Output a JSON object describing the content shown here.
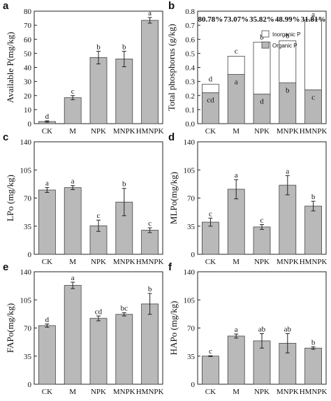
{
  "chart_data": [
    {
      "panel": "a",
      "type": "bar",
      "categories": [
        "CK",
        "M",
        "NPK",
        "MNPK",
        "HMNPK"
      ],
      "ylabel": "Available P(mg/kg)",
      "ylim": [
        0,
        80
      ],
      "yticks": [
        0,
        10,
        20,
        30,
        40,
        50,
        60,
        70,
        80
      ],
      "values": [
        1.5,
        18.5,
        47,
        46,
        73.5
      ],
      "errors": [
        0.5,
        1.5,
        4.5,
        5.5,
        2
      ],
      "letters": [
        "d",
        "c",
        "b",
        "b",
        "a"
      ]
    },
    {
      "panel": "b",
      "type": "bar",
      "stacked": true,
      "categories": [
        "CK",
        "M",
        "NPK",
        "MNPK",
        "HMNPK"
      ],
      "ylabel": "Total phosphorus (g/kg)",
      "ylim": [
        0,
        0.8
      ],
      "yticks": [
        0.0,
        0.1,
        0.2,
        0.3,
        0.4,
        0.5,
        0.6,
        0.7,
        0.8
      ],
      "series": [
        {
          "name": "Inorganic P",
          "values": [
            0.06,
            0.13,
            0.37,
            0.3,
            0.5
          ],
          "color": "#ffffff"
        },
        {
          "name": "Organic P",
          "values": [
            0.22,
            0.35,
            0.21,
            0.29,
            0.24
          ],
          "color": "#b7b7b7"
        }
      ],
      "top_letters": [
        "d",
        "c",
        "b",
        "b",
        "a"
      ],
      "organic_letters": [
        "cd",
        "a",
        "d",
        "b",
        "c"
      ],
      "percentages": [
        "80.78%",
        "73.07%",
        "35.82%",
        "48.99%",
        "31.81%"
      ],
      "legend_position": "top-right"
    },
    {
      "panel": "c",
      "type": "bar",
      "categories": [
        "CK",
        "M",
        "NPK",
        "MNPK",
        "HMNPK"
      ],
      "ylabel": "LPo (mg/kg)",
      "ylim": [
        0,
        140
      ],
      "yticks": [
        0,
        35,
        70,
        105,
        140
      ],
      "values": [
        80,
        83,
        35.5,
        65,
        30
      ],
      "errors": [
        3,
        2.5,
        7,
        17,
        3
      ],
      "letters": [
        "a",
        "a",
        "c",
        "b",
        "c"
      ]
    },
    {
      "panel": "d",
      "type": "bar",
      "categories": [
        "CK",
        "M",
        "NPK",
        "MNPK",
        "HMNPK"
      ],
      "ylabel": "MLPo(mg/kg)",
      "ylim": [
        0,
        140
      ],
      "yticks": [
        0,
        35,
        70,
        105,
        140
      ],
      "values": [
        40,
        81,
        34,
        86,
        60
      ],
      "errors": [
        5,
        12,
        3,
        12,
        6
      ],
      "letters": [
        "c",
        "a",
        "c",
        "a",
        "b"
      ]
    },
    {
      "panel": "e",
      "type": "bar",
      "categories": [
        "CK",
        "M",
        "NPK",
        "MNPK",
        "HMNPK"
      ],
      "ylabel": "FAPo(mg/kg)",
      "ylim": [
        0,
        140
      ],
      "yticks": [
        0,
        35,
        70,
        105,
        140
      ],
      "values": [
        73,
        123,
        82,
        87,
        100
      ],
      "errors": [
        2,
        4,
        3,
        2,
        13
      ],
      "letters": [
        "d",
        "a",
        "cd",
        "bc",
        "b"
      ]
    },
    {
      "panel": "f",
      "type": "bar",
      "categories": [
        "CK",
        "M",
        "NPK",
        "MNPK",
        "HMNPK"
      ],
      "ylabel": "HAPo (mg/kg)",
      "ylim": [
        0,
        140
      ],
      "yticks": [
        0,
        35,
        70,
        105,
        140
      ],
      "values": [
        35,
        60,
        54,
        51,
        45
      ],
      "errors": [
        0.5,
        2.5,
        9,
        12,
        1.5
      ],
      "letters": [
        "c",
        "a",
        "ab",
        "ab",
        "b"
      ]
    }
  ]
}
